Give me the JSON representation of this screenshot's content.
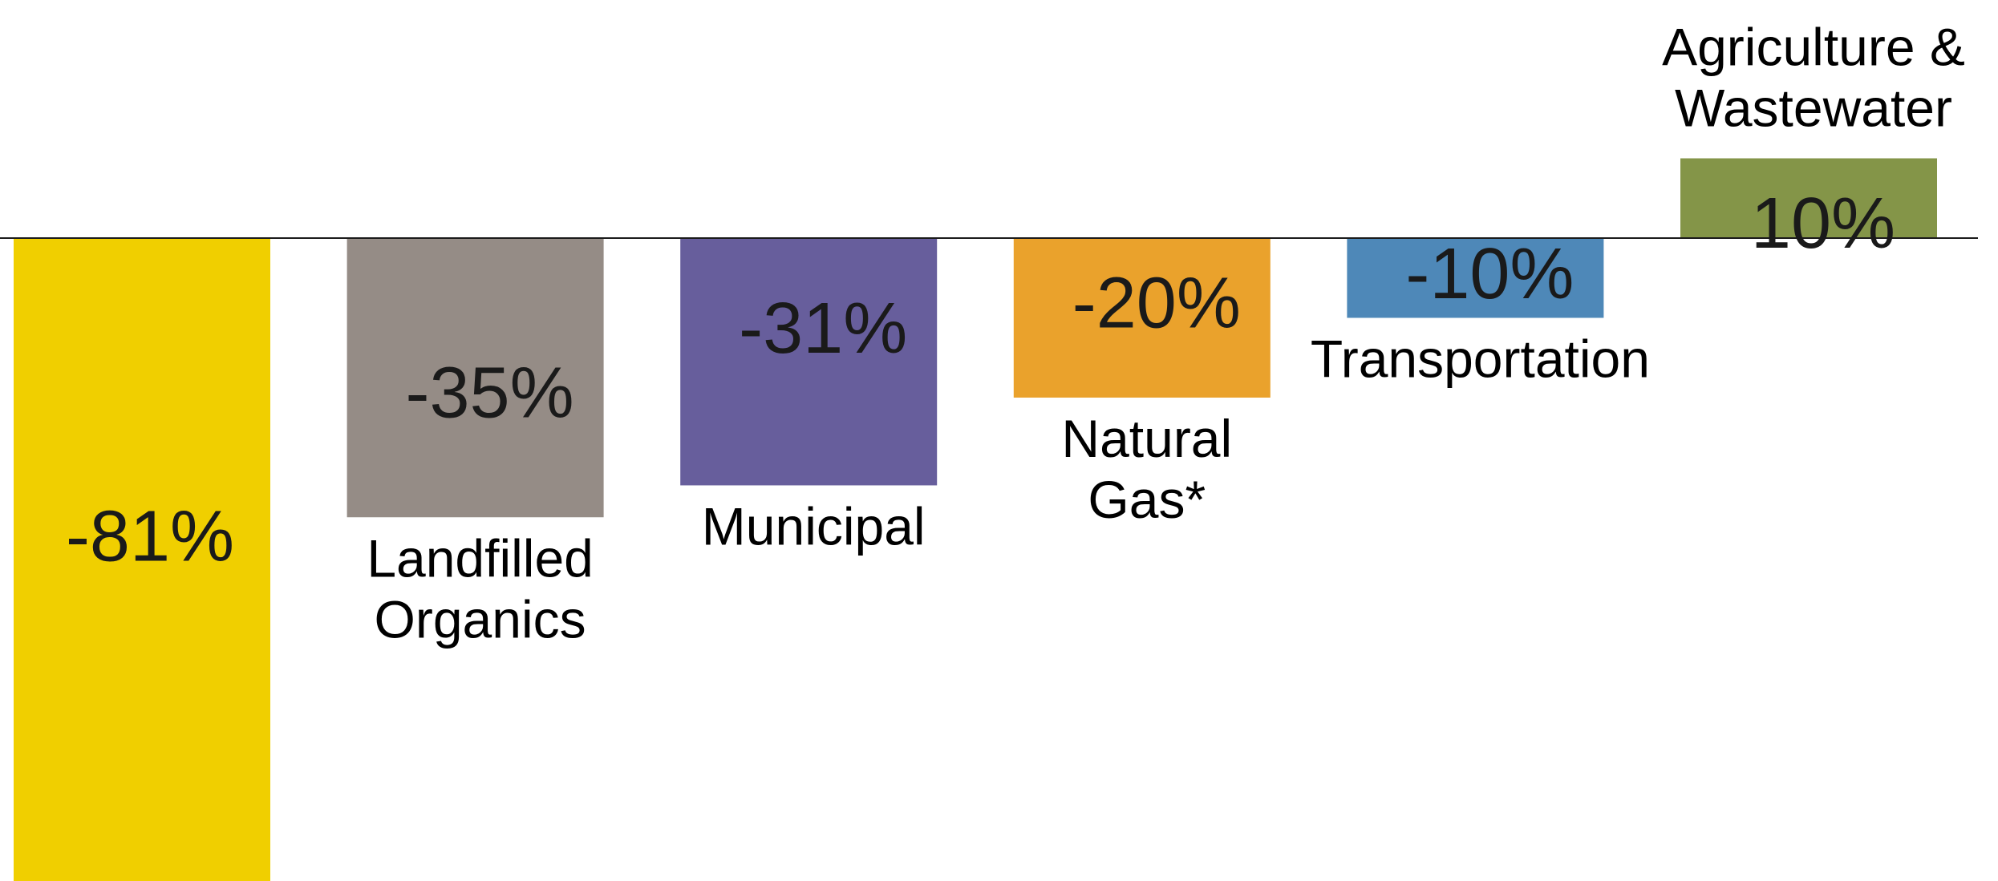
{
  "chart_data": {
    "type": "bar",
    "title": "",
    "xlabel": "",
    "ylabel": "",
    "categories": [
      "",
      "Landfilled Organics",
      "Municipal",
      "Natural Gas*",
      "Transportation",
      "Agriculture & Wastewater"
    ],
    "category_lines": [
      [],
      [
        "Landfilled",
        "Organics"
      ],
      [
        "Municipal"
      ],
      [
        "Natural",
        "Gas*"
      ],
      [
        "Transportation"
      ],
      [
        "Agriculture &",
        "Wastewater"
      ]
    ],
    "values": [
      -81,
      -35,
      -31,
      -20,
      -10,
      10
    ],
    "value_labels": [
      "-81%",
      "-35%",
      "-31%",
      "-20%",
      "-10%",
      "10%"
    ],
    "colors": [
      "#F0CF00",
      "#958C86",
      "#675E9C",
      "#EAA22C",
      "#4E88B8",
      "#849548"
    ],
    "unit": "%",
    "grid": false,
    "legend": "none"
  }
}
